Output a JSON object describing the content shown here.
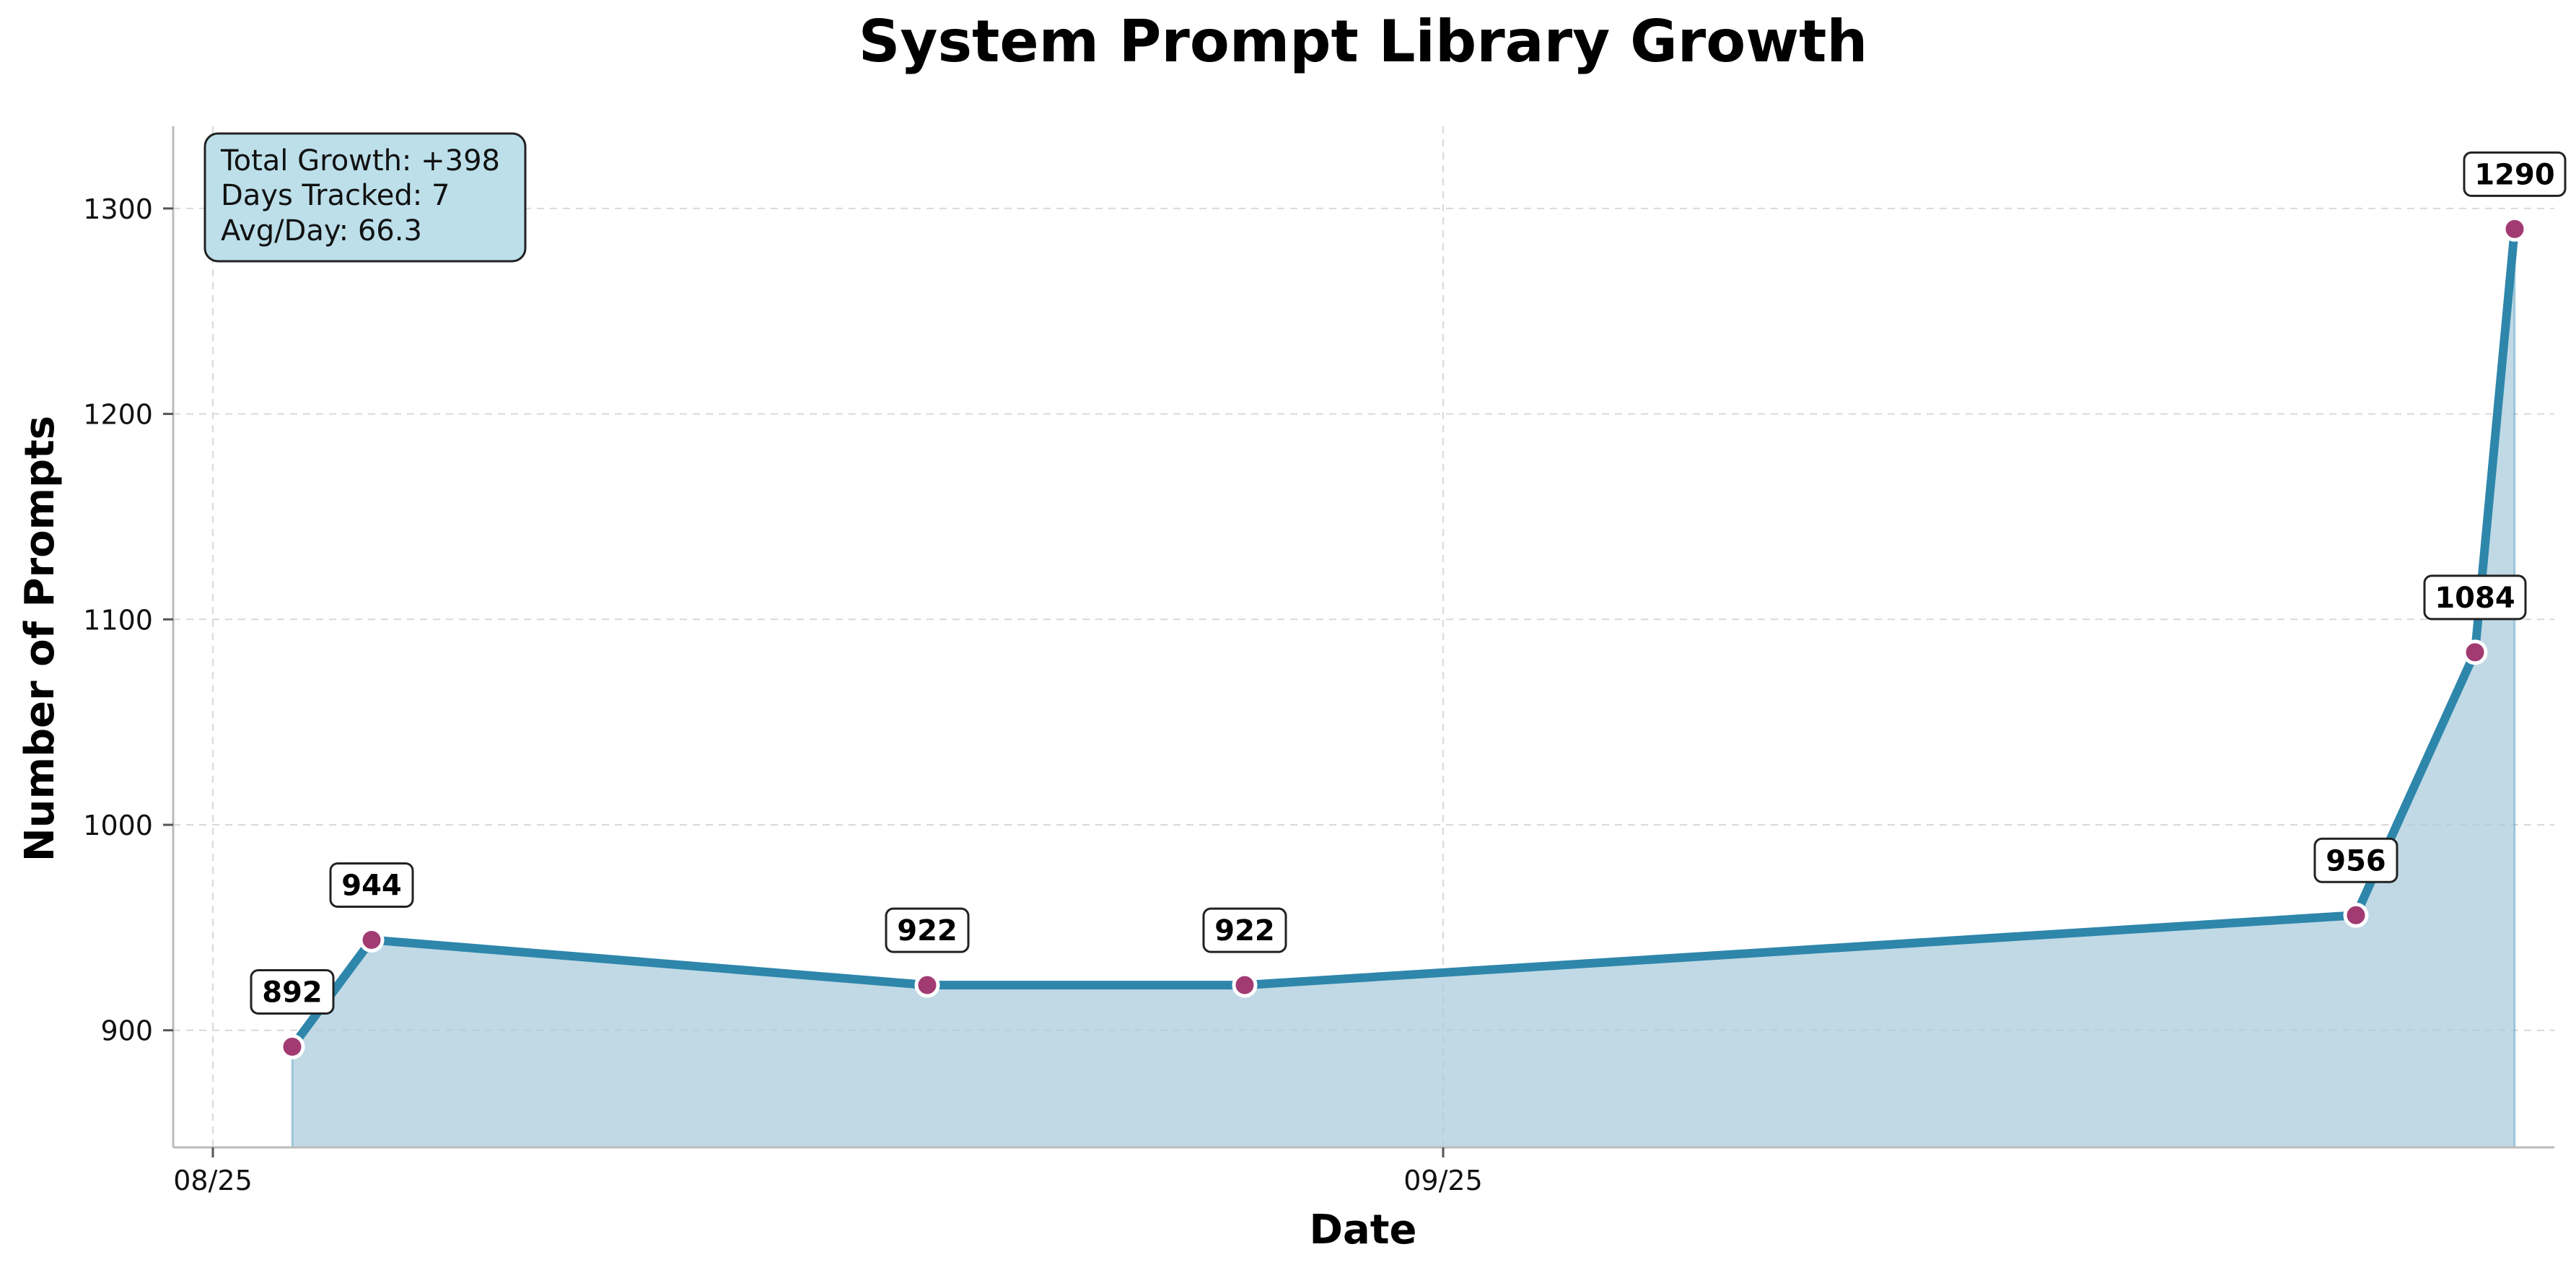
{
  "chart_data": {
    "type": "area",
    "title": "System Prompt Library Growth",
    "xlabel": "Date",
    "ylabel": "Number of Prompts",
    "x_ticks": [
      "08/25",
      "09/25"
    ],
    "y_ticks": [
      900,
      1000,
      1100,
      1200,
      1300
    ],
    "ylim": [
      843,
      1340
    ],
    "grid": true,
    "points": [
      {
        "x": "08/27",
        "y": 892
      },
      {
        "x": "08/29",
        "y": 944
      },
      {
        "x": "09/12",
        "y": 922
      },
      {
        "x": "09/20",
        "y": 922
      },
      {
        "x": "10/18",
        "y": 956
      },
      {
        "x": "10/21",
        "y": 1084
      },
      {
        "x": "10/22",
        "y": 1290
      }
    ],
    "stats_box": {
      "lines": [
        "Total Growth: +398",
        "Days Tracked: 7",
        "Avg/Day: 66.3"
      ],
      "placement": "top-left"
    },
    "colors": {
      "line": "#2e86ab",
      "fill": "#a8cadb",
      "marker": "#a23b72",
      "stats_box": "#bcdfea"
    }
  }
}
